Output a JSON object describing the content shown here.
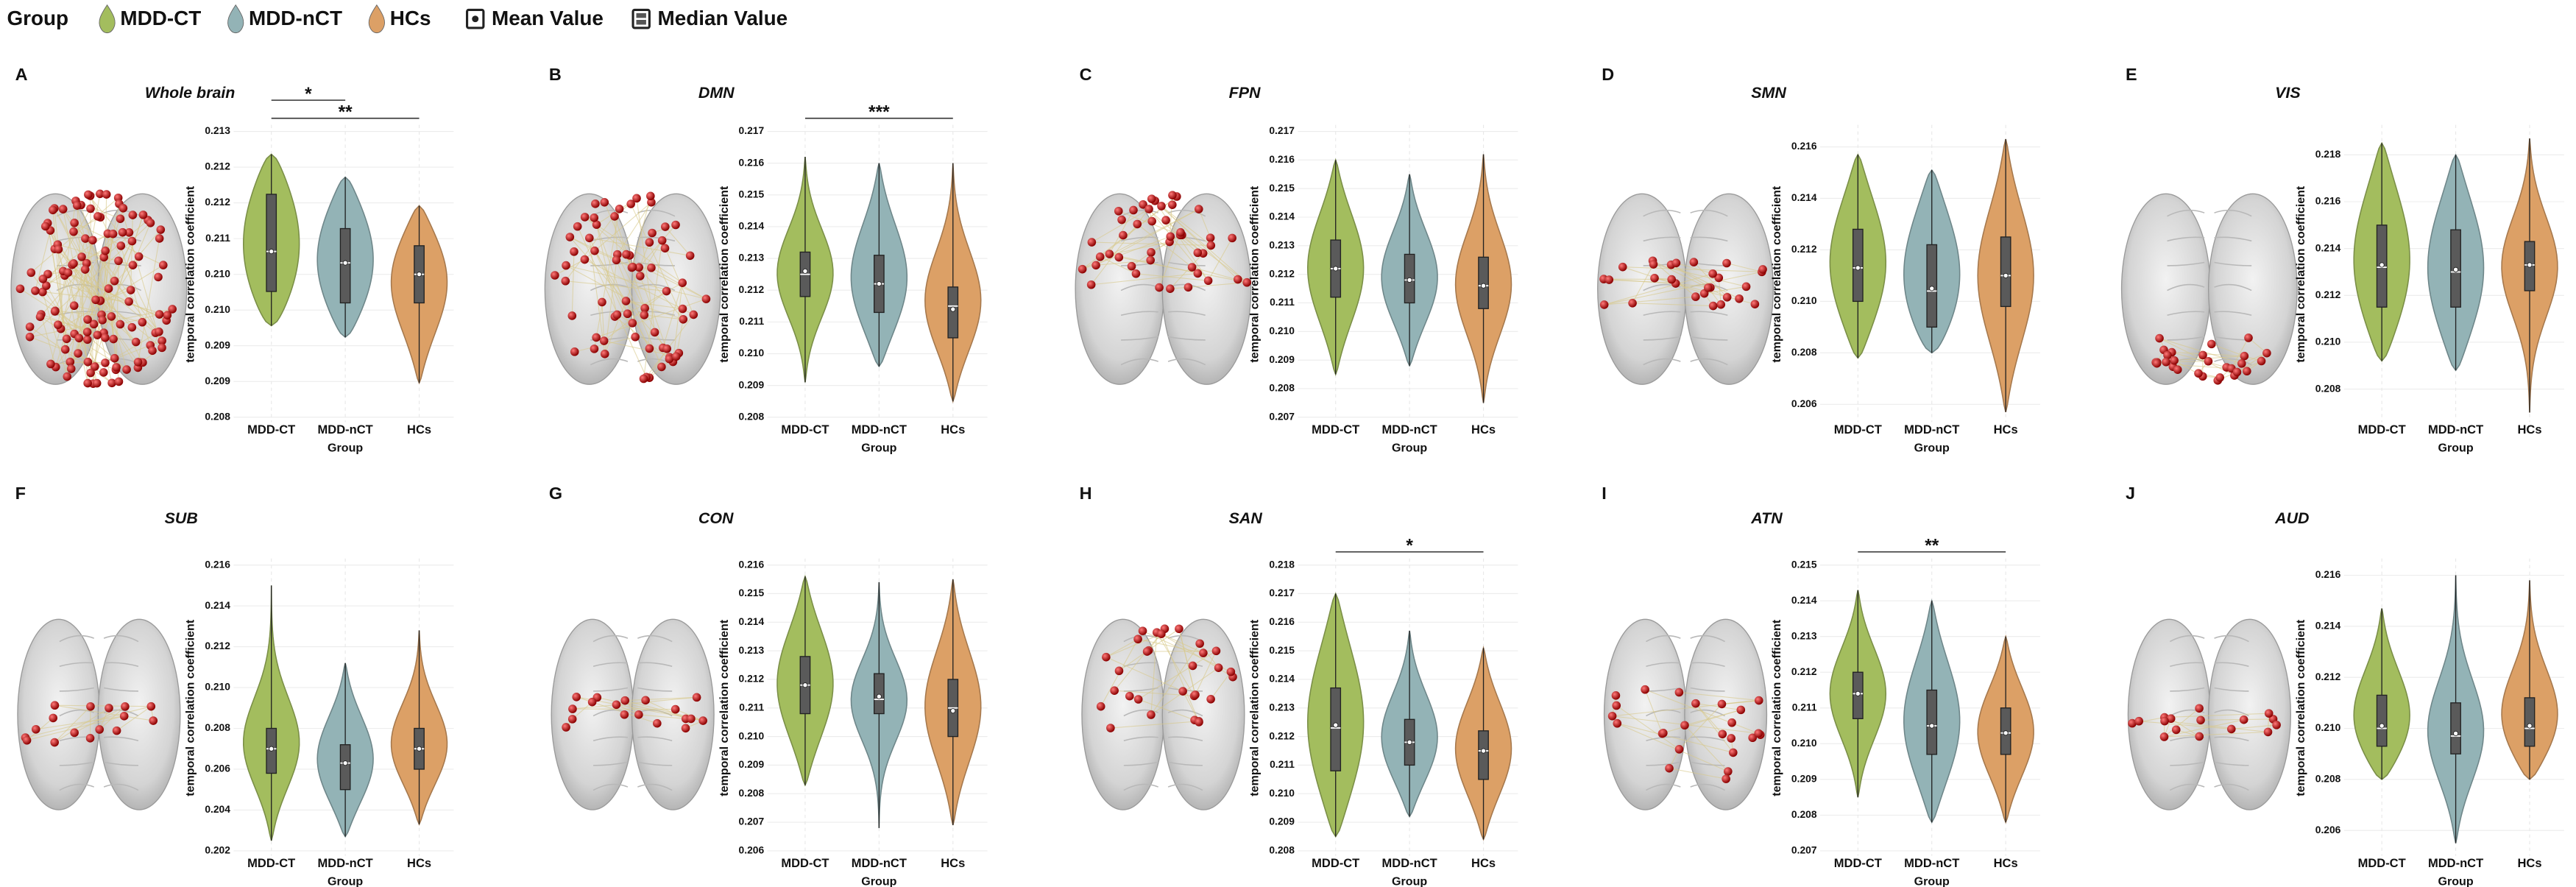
{
  "legend": {
    "title": "Group",
    "items": [
      {
        "name": "MDD-CT",
        "color": "#a3bd5e"
      },
      {
        "name": "MDD-nCT",
        "color": "#93b3b6"
      },
      {
        "name": "HCs",
        "color": "#dca066"
      }
    ],
    "stats": [
      "Mean Value",
      "Median Value"
    ]
  },
  "chart_data": [
    {
      "type": "violin",
      "label": "A",
      "title": "Whole brain",
      "xlabel": "Group",
      "ylabel": "temporal correlation coefficient",
      "categories": [
        "MDD-CT",
        "MDD-nCT",
        "HCs"
      ],
      "ylim": [
        0.208,
        0.213
      ],
      "yticks": [
        0.208,
        {
          "value": 0.208625,
          "label": "0.209"
        },
        {
          "value": 0.20925,
          "label": "0.209"
        },
        {
          "value": 0.209875,
          "label": "0.210"
        },
        {
          "value": 0.2105,
          "label": "0.210"
        },
        {
          "value": 0.211125,
          "label": "0.211"
        },
        {
          "value": 0.21175,
          "label": "0.212"
        },
        {
          "value": 0.212375,
          "label": "0.212"
        },
        0.213
      ],
      "grid": true,
      "groups": [
        {
          "min": 0.2096,
          "q1": 0.2102,
          "median": 0.2109,
          "q3": 0.2119,
          "max": 0.2126,
          "mean": 0.2109
        },
        {
          "min": 0.2094,
          "q1": 0.21,
          "median": 0.2107,
          "q3": 0.2113,
          "max": 0.2122,
          "mean": 0.2107
        },
        {
          "min": 0.2086,
          "q1": 0.21,
          "median": 0.2105,
          "q3": 0.211,
          "max": 0.2117,
          "mean": 0.2105
        }
      ],
      "annotations": [
        {
          "text": "*",
          "from": 0,
          "to": 1
        },
        {
          "text": "**",
          "from": 0,
          "to": 2
        }
      ]
    },
    {
      "type": "violin",
      "label": "B",
      "title": "DMN",
      "xlabel": "Group",
      "ylabel": "temporal correlation coefficient",
      "categories": [
        "MDD-CT",
        "MDD-nCT",
        "HCs"
      ],
      "ylim": [
        0.208,
        0.217
      ],
      "yticks": [
        0.208,
        0.209,
        {
          "value": 0.21,
          "label": "0.210"
        },
        0.211,
        0.212,
        0.213,
        0.214,
        0.215,
        0.216,
        0.217
      ],
      "grid": true,
      "groups": [
        {
          "min": 0.2091,
          "q1": 0.2118,
          "median": 0.2125,
          "q3": 0.2132,
          "max": 0.2162,
          "mean": 0.2126
        },
        {
          "min": 0.2096,
          "q1": 0.2113,
          "median": 0.2122,
          "q3": 0.2131,
          "max": 0.216,
          "mean": 0.2122
        },
        {
          "min": 0.2085,
          "q1": 0.2105,
          "median": 0.2115,
          "q3": 0.2121,
          "max": 0.216,
          "mean": 0.2114
        }
      ],
      "annotations": [
        {
          "text": "***",
          "from": 0,
          "to": 2
        }
      ]
    },
    {
      "type": "violin",
      "label": "C",
      "title": "FPN",
      "xlabel": "Group",
      "ylabel": "temporal correlation coefficient",
      "categories": [
        "MDD-CT",
        "MDD-nCT",
        "HCs"
      ],
      "ylim": [
        0.207,
        0.217
      ],
      "yticks": [
        0.207,
        0.208,
        0.209,
        {
          "value": 0.21,
          "label": "0.210"
        },
        0.211,
        0.212,
        0.213,
        0.214,
        0.215,
        0.216,
        0.217
      ],
      "grid": true,
      "groups": [
        {
          "min": 0.2085,
          "q1": 0.2112,
          "median": 0.2122,
          "q3": 0.2132,
          "max": 0.216,
          "mean": 0.2122
        },
        {
          "min": 0.2088,
          "q1": 0.211,
          "median": 0.2118,
          "q3": 0.2127,
          "max": 0.2155,
          "mean": 0.2118
        },
        {
          "min": 0.2075,
          "q1": 0.2108,
          "median": 0.2116,
          "q3": 0.2126,
          "max": 0.2162,
          "mean": 0.2116
        }
      ],
      "annotations": []
    },
    {
      "type": "violin",
      "label": "D",
      "title": "SMN",
      "xlabel": "Group",
      "ylabel": "temporal correlation coefficient",
      "categories": [
        "MDD-CT",
        "MDD-nCT",
        "HCs"
      ],
      "ylim": [
        0.2055,
        0.2166
      ],
      "yticks": [
        0.206,
        0.208,
        {
          "value": 0.21,
          "label": "0.210"
        },
        0.212,
        0.214,
        0.216
      ],
      "grid": true,
      "groups": [
        {
          "min": 0.2078,
          "q1": 0.21,
          "median": 0.2113,
          "q3": 0.2128,
          "max": 0.2157,
          "mean": 0.2113
        },
        {
          "min": 0.208,
          "q1": 0.209,
          "median": 0.2104,
          "q3": 0.2122,
          "max": 0.2151,
          "mean": 0.2105
        },
        {
          "min": 0.2057,
          "q1": 0.2098,
          "median": 0.211,
          "q3": 0.2125,
          "max": 0.2163,
          "mean": 0.211
        }
      ],
      "annotations": []
    },
    {
      "type": "violin",
      "label": "E",
      "title": "VIS",
      "xlabel": "Group",
      "ylabel": "temporal correlation coefficient",
      "categories": [
        "MDD-CT",
        "MDD-nCT",
        "HCs"
      ],
      "ylim": [
        0.2068,
        0.219
      ],
      "yticks": [
        0.208,
        {
          "value": 0.21,
          "label": "0.210"
        },
        0.212,
        0.214,
        0.216,
        0.218
      ],
      "grid": true,
      "groups": [
        {
          "min": 0.2092,
          "q1": 0.2115,
          "median": 0.2132,
          "q3": 0.215,
          "max": 0.2185,
          "mean": 0.2133
        },
        {
          "min": 0.2088,
          "q1": 0.2115,
          "median": 0.213,
          "q3": 0.2148,
          "max": 0.218,
          "mean": 0.2131
        },
        {
          "min": 0.207,
          "q1": 0.2122,
          "median": 0.2133,
          "q3": 0.2143,
          "max": 0.2187,
          "mean": 0.2133
        }
      ],
      "annotations": []
    },
    {
      "type": "violin",
      "label": "F",
      "title": "SUB",
      "xlabel": "Group",
      "ylabel": "temporal correlation coefficient",
      "categories": [
        "MDD-CT",
        "MDD-nCT",
        "HCs"
      ],
      "ylim": [
        0.202,
        0.216
      ],
      "yticks": [
        0.202,
        0.204,
        0.206,
        0.208,
        {
          "value": 0.21,
          "label": "0.210"
        },
        0.212,
        0.214,
        0.216
      ],
      "grid": true,
      "groups": [
        {
          "min": 0.2025,
          "q1": 0.2058,
          "median": 0.207,
          "q3": 0.208,
          "max": 0.215,
          "mean": 0.207
        },
        {
          "min": 0.2027,
          "q1": 0.205,
          "median": 0.2063,
          "q3": 0.2072,
          "max": 0.2112,
          "mean": 0.2063
        },
        {
          "min": 0.2033,
          "q1": 0.206,
          "median": 0.207,
          "q3": 0.208,
          "max": 0.2128,
          "mean": 0.207
        }
      ],
      "annotations": []
    },
    {
      "type": "violin",
      "label": "G",
      "title": "CON",
      "xlabel": "Group",
      "ylabel": "temporal correlation coefficient",
      "categories": [
        "MDD-CT",
        "MDD-nCT",
        "HCs"
      ],
      "ylim": [
        0.206,
        0.216
      ],
      "yticks": [
        0.206,
        0.207,
        0.208,
        0.209,
        {
          "value": 0.21,
          "label": "0.210"
        },
        0.211,
        0.212,
        0.213,
        0.214,
        0.215,
        0.216
      ],
      "grid": true,
      "groups": [
        {
          "min": 0.2083,
          "q1": 0.2108,
          "median": 0.2118,
          "q3": 0.2128,
          "max": 0.2156,
          "mean": 0.2118
        },
        {
          "min": 0.2068,
          "q1": 0.2108,
          "median": 0.2113,
          "q3": 0.2122,
          "max": 0.2154,
          "mean": 0.2114
        },
        {
          "min": 0.2069,
          "q1": 0.21,
          "median": 0.211,
          "q3": 0.212,
          "max": 0.2155,
          "mean": 0.2109
        }
      ],
      "annotations": []
    },
    {
      "type": "violin",
      "label": "H",
      "title": "SAN",
      "xlabel": "Group",
      "ylabel": "temporal correlation coefficient",
      "categories": [
        "MDD-CT",
        "MDD-nCT",
        "HCs"
      ],
      "ylim": [
        0.208,
        0.218
      ],
      "yticks": [
        0.208,
        0.209,
        {
          "value": 0.21,
          "label": "0.210"
        },
        0.211,
        0.212,
        0.213,
        0.214,
        0.215,
        0.216,
        0.217,
        0.218
      ],
      "grid": true,
      "groups": [
        {
          "min": 0.2085,
          "q1": 0.2108,
          "median": 0.2123,
          "q3": 0.2137,
          "max": 0.217,
          "mean": 0.2124
        },
        {
          "min": 0.2092,
          "q1": 0.211,
          "median": 0.2118,
          "q3": 0.2126,
          "max": 0.2157,
          "mean": 0.2118
        },
        {
          "min": 0.2084,
          "q1": 0.2105,
          "median": 0.2115,
          "q3": 0.2122,
          "max": 0.2151,
          "mean": 0.2115
        }
      ],
      "annotations": [
        {
          "text": "*",
          "from": 0,
          "to": 2
        }
      ]
    },
    {
      "type": "violin",
      "label": "I",
      "title": "ATN",
      "xlabel": "Group",
      "ylabel": "temporal correlation coefficient",
      "categories": [
        "MDD-CT",
        "MDD-nCT",
        "HCs"
      ],
      "ylim": [
        0.207,
        0.215
      ],
      "yticks": [
        0.207,
        0.208,
        0.209,
        {
          "value": 0.21,
          "label": "0.210"
        },
        0.211,
        0.212,
        0.213,
        0.214,
        0.215
      ],
      "grid": true,
      "groups": [
        {
          "min": 0.2085,
          "q1": 0.2107,
          "median": 0.2114,
          "q3": 0.212,
          "max": 0.2143,
          "mean": 0.2114
        },
        {
          "min": 0.2078,
          "q1": 0.2097,
          "median": 0.2105,
          "q3": 0.2115,
          "max": 0.214,
          "mean": 0.2105
        },
        {
          "min": 0.2078,
          "q1": 0.2097,
          "median": 0.2103,
          "q3": 0.211,
          "max": 0.213,
          "mean": 0.2103
        }
      ],
      "annotations": [
        {
          "text": "**",
          "from": 0,
          "to": 2
        }
      ]
    },
    {
      "type": "violin",
      "label": "J",
      "title": "AUD",
      "xlabel": "Group",
      "ylabel": "temporal correlation coefficient",
      "categories": [
        "MDD-CT",
        "MDD-nCT",
        "HCs"
      ],
      "ylim": [
        0.2052,
        0.2164
      ],
      "yticks": [
        0.206,
        0.208,
        {
          "value": 0.21,
          "label": "0.210"
        },
        0.212,
        0.214,
        0.216
      ],
      "grid": true,
      "groups": [
        {
          "min": 0.208,
          "q1": 0.2093,
          "median": 0.21,
          "q3": 0.2113,
          "max": 0.2147,
          "mean": 0.2101
        },
        {
          "min": 0.2055,
          "q1": 0.209,
          "median": 0.2097,
          "q3": 0.211,
          "max": 0.216,
          "mean": 0.2098
        },
        {
          "min": 0.208,
          "q1": 0.2093,
          "median": 0.21,
          "q3": 0.2112,
          "max": 0.2158,
          "mean": 0.2101
        }
      ],
      "annotations": []
    }
  ]
}
